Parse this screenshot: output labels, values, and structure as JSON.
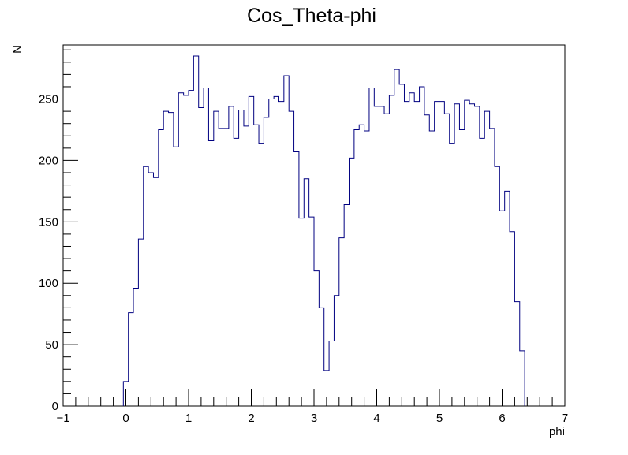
{
  "chart_data": {
    "type": "histogram",
    "title": "Cos_Theta-phi",
    "xlabel": "phi",
    "ylabel": "N",
    "xlim": [
      -1,
      7
    ],
    "ylim": [
      0,
      294
    ],
    "grid": false,
    "legend": "none",
    "line_color": "#000080",
    "x_ticks": [
      -1,
      0,
      1,
      2,
      3,
      4,
      5,
      6,
      7
    ],
    "x_tick_labels": [
      "−1",
      "0",
      "1",
      "2",
      "3",
      "4",
      "5",
      "6",
      "7"
    ],
    "y_ticks": [
      0,
      50,
      100,
      150,
      200,
      250
    ],
    "y_tick_labels": [
      "0",
      "50",
      "100",
      "150",
      "200",
      "250"
    ],
    "bin_start": -1,
    "bin_width": 0.08,
    "values": [
      0,
      0,
      0,
      0,
      0,
      0,
      0,
      0,
      0,
      0,
      0,
      0,
      20,
      76,
      96,
      136,
      195,
      190,
      186,
      225,
      240,
      239,
      211,
      255,
      253,
      257,
      285,
      243,
      259,
      216,
      240,
      226,
      226,
      244,
      218,
      241,
      228,
      252,
      229,
      214,
      235,
      250,
      252,
      248,
      269,
      240,
      207,
      153,
      185,
      154,
      110,
      80,
      29,
      53,
      90,
      137,
      164,
      202,
      225,
      229,
      224,
      259,
      244,
      244,
      238,
      253,
      274,
      262,
      248,
      255,
      248,
      260,
      237,
      224,
      248,
      248,
      238,
      214,
      246,
      225,
      249,
      246,
      244,
      218,
      240,
      226,
      195,
      159,
      175,
      142,
      85,
      45,
      0,
      0,
      0,
      0,
      0,
      0,
      0,
      0
    ]
  }
}
